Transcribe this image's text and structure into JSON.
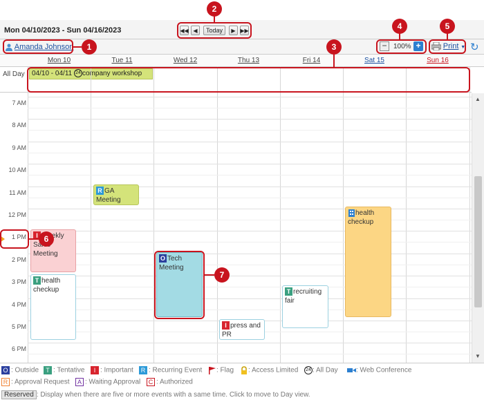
{
  "header": {
    "date_range": "Mon 04/10/2023 - Sun 04/16/2023",
    "today_label": "Today",
    "first_label": "◀◀",
    "prev_label": "◀",
    "next_label": "▶",
    "last_label": "▶▶"
  },
  "toolbar": {
    "user_name": "Amanda Johnson",
    "zoom_value": "100%",
    "zoom_out": "−",
    "zoom_in": "+",
    "print_label": "Print",
    "refresh_icon": "↻"
  },
  "days": [
    {
      "label": "Mon 10",
      "color": "#444444"
    },
    {
      "label": "Tue 11",
      "color": "#444444"
    },
    {
      "label": "Wed 12",
      "color": "#444444"
    },
    {
      "label": "Thu 13",
      "color": "#444444"
    },
    {
      "label": "Fri 14",
      "color": "#444444"
    },
    {
      "label": "Sat 15",
      "color": "#1a4fa0"
    },
    {
      "label": "Sun 16",
      "color": "#c8141e"
    }
  ],
  "allday": {
    "label": "All Day",
    "event_dates": "04/10 - 04/11",
    "event_title": "company workshop"
  },
  "times": [
    "7 AM",
    "8 AM",
    "9 AM",
    "10 AM",
    "11 AM",
    "12 PM",
    "1 PM",
    "2 PM",
    "3 PM",
    "4 PM",
    "5 PM",
    "6 PM"
  ],
  "events": {
    "ga": {
      "tag": "R",
      "title": "GA Meeting"
    },
    "weekly": {
      "tag": "I",
      "title": "Weekly Sales Meeting"
    },
    "health_mon": {
      "tag": "T",
      "title": "health checkup"
    },
    "tech": {
      "tag": "O",
      "title": "Tech Meeting"
    },
    "press": {
      "tag": "I",
      "title": "press and PR"
    },
    "recruit": {
      "tag": "T",
      "title": "recruiting fair"
    },
    "health_sat": {
      "tag": "",
      "title": "health checkup"
    }
  },
  "callouts": [
    "1",
    "2",
    "3",
    "4",
    "5",
    "6",
    "7"
  ],
  "legend": {
    "outside": {
      "tag": "O",
      "label": ": Outside"
    },
    "tentative": {
      "tag": "T",
      "label": ": Tentative"
    },
    "important": {
      "tag": "I",
      "label": ": Important"
    },
    "recurring": {
      "tag": "R",
      "label": ": Recurring Event"
    },
    "flag": {
      "label": ": Flag"
    },
    "access": {
      "label": ": Access Limited"
    },
    "allday": {
      "label": ": All Day"
    },
    "web": {
      "label": ": Web Conference"
    },
    "approval": {
      "tag": "R",
      "label": ": Approval Request"
    },
    "waiting": {
      "tag": "A",
      "label": ": Waiting Approval"
    },
    "authorized": {
      "tag": "C",
      "label": ": Authorized"
    },
    "reserved": {
      "tag": "Reserved",
      "label": ": Display when there are five or more events with a same time. Click to move to Day view."
    }
  },
  "colors": {
    "accent": "#c8141e",
    "tentative": "#3aa080",
    "important": "#d8242e",
    "outside": "#2b3f9e",
    "recurring": "#2c9ad8"
  }
}
